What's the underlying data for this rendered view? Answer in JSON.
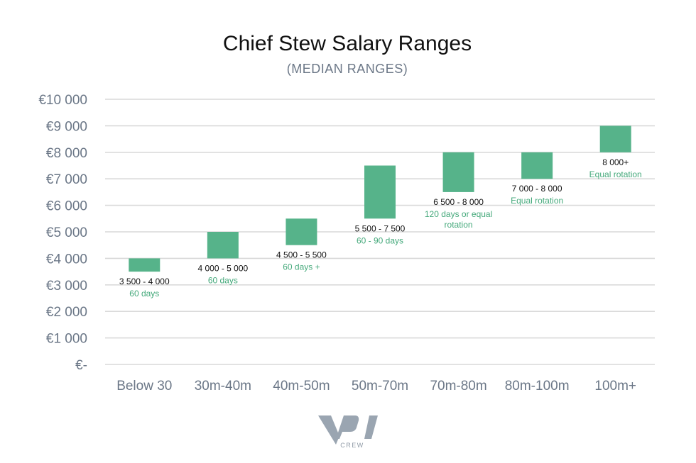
{
  "chart_data": {
    "type": "bar",
    "subtype": "floating-range",
    "title": "Chief Stew Salary Ranges",
    "subtitle": "(MEDIAN RANGES)",
    "xlabel": "",
    "ylabel": "",
    "ylim": [
      0,
      10000
    ],
    "ytick_labels": [
      "€-",
      "€1 000",
      "€2 000",
      "€3 000",
      "€4 000",
      "€5 000",
      "€6 000",
      "€7 000",
      "€8 000",
      "€9 000",
      "€10 000"
    ],
    "grid": true,
    "categories": [
      "Below 30",
      "30m-40m",
      "40m-50m",
      "50m-70m",
      "70m-80m",
      "80m-100m",
      "100m+"
    ],
    "ranges": [
      [
        3500,
        4000
      ],
      [
        4000,
        5000
      ],
      [
        4500,
        5500
      ],
      [
        5500,
        7500
      ],
      [
        6500,
        8000
      ],
      [
        7000,
        8000
      ],
      [
        8000,
        9000
      ]
    ],
    "range_labels": [
      "3 500 - 4 000",
      "4 000 - 5 000",
      "4 500 - 5 500",
      "5 500 - 7 500",
      "6 500 - 8 000",
      "7 000 - 8 000",
      "8 000+"
    ],
    "notes": [
      [
        "60 days"
      ],
      [
        "60 days"
      ],
      [
        "60 days +"
      ],
      [
        "60 - 90 days"
      ],
      [
        "120 days or equal",
        "rotation"
      ],
      [
        "Equal rotation"
      ],
      [
        "Equal rotation"
      ]
    ],
    "colors": {
      "bar": "#56b38a",
      "note": "#45a97b",
      "axis_text": "#6b7787",
      "grid": "#d9d9d9"
    }
  },
  "logo": {
    "text": "CREW",
    "wordmark": "YPI"
  }
}
